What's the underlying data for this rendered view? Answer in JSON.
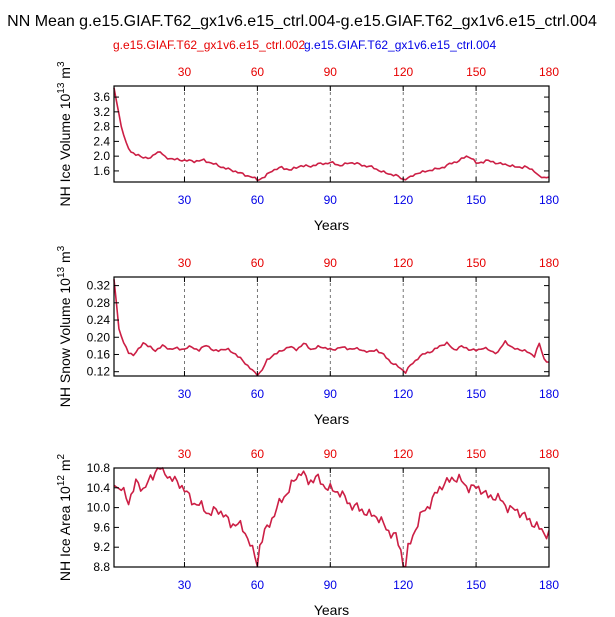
{
  "title": "NN Mean g.e15.GIAF.T62_gx1v6.e15_ctrl.004-g.e15.GIAF.T62_gx1v6.e15_ctrl.004",
  "legend": [
    {
      "label": "g.e15.GIAF.T62_gx1v6.e15_ctrl.002",
      "color": "#e60000"
    },
    {
      "label": "g.e15.GIAF.T62_gx1v6.e15_ctrl.004",
      "color": "#0000e6"
    }
  ],
  "colors": {
    "line": "#cc1f45",
    "top_ticks": "#e60000",
    "bottom_ticks": "#0000e6",
    "grid": "#555555"
  },
  "chart_data": [
    {
      "type": "line",
      "ylabel_main": "NH Ice Volume 10",
      "ylabel_exp": "13",
      "ylabel_unit": "m",
      "ylabel_unit_exp": "3",
      "xlabel": "Years",
      "xlim": [
        1,
        180
      ],
      "ylim": [
        1.3,
        3.9
      ],
      "xticks": [
        30,
        60,
        90,
        120,
        150,
        180
      ],
      "yticks": [
        "1.6",
        "2.0",
        "2.4",
        "2.8",
        "3.2",
        "3.6"
      ],
      "grid_x": [
        30,
        60,
        90,
        120,
        150
      ],
      "anchors": [
        [
          1,
          3.85
        ],
        [
          2,
          3.5
        ],
        [
          4,
          2.8
        ],
        [
          6,
          2.35
        ],
        [
          8,
          2.12
        ],
        [
          10,
          2.02
        ],
        [
          12,
          2.0
        ],
        [
          14,
          1.97
        ],
        [
          16,
          1.93
        ],
        [
          18,
          2.08
        ],
        [
          20,
          2.12
        ],
        [
          22,
          1.98
        ],
        [
          26,
          1.9
        ],
        [
          30,
          1.9
        ],
        [
          34,
          1.85
        ],
        [
          38,
          1.9
        ],
        [
          42,
          1.78
        ],
        [
          46,
          1.7
        ],
        [
          50,
          1.6
        ],
        [
          54,
          1.52
        ],
        [
          57,
          1.45
        ],
        [
          60,
          1.35
        ],
        [
          63,
          1.45
        ],
        [
          66,
          1.6
        ],
        [
          70,
          1.7
        ],
        [
          74,
          1.62
        ],
        [
          78,
          1.75
        ],
        [
          82,
          1.72
        ],
        [
          86,
          1.8
        ],
        [
          90,
          1.82
        ],
        [
          94,
          1.75
        ],
        [
          98,
          1.82
        ],
        [
          102,
          1.78
        ],
        [
          106,
          1.72
        ],
        [
          110,
          1.62
        ],
        [
          114,
          1.52
        ],
        [
          118,
          1.45
        ],
        [
          120,
          1.38
        ],
        [
          123,
          1.42
        ],
        [
          126,
          1.55
        ],
        [
          130,
          1.6
        ],
        [
          134,
          1.65
        ],
        [
          138,
          1.75
        ],
        [
          142,
          1.85
        ],
        [
          146,
          2.0
        ],
        [
          148,
          1.95
        ],
        [
          150,
          1.8
        ],
        [
          154,
          1.88
        ],
        [
          158,
          1.82
        ],
        [
          162,
          1.78
        ],
        [
          166,
          1.7
        ],
        [
          170,
          1.72
        ],
        [
          172,
          1.65
        ],
        [
          174,
          1.6
        ],
        [
          176,
          1.45
        ],
        [
          178,
          1.42
        ],
        [
          180,
          1.45
        ]
      ]
    },
    {
      "type": "line",
      "ylabel_main": "NH Snow Volume 10",
      "ylabel_exp": "13",
      "ylabel_unit": "m",
      "ylabel_unit_exp": "3",
      "xlabel": "Years",
      "xlim": [
        1,
        180
      ],
      "ylim": [
        0.11,
        0.34
      ],
      "xticks": [
        30,
        60,
        90,
        120,
        150,
        180
      ],
      "yticks": [
        "0.12",
        "0.16",
        "0.20",
        "0.24",
        "0.28",
        "0.32"
      ],
      "grid_x": [
        30,
        60,
        90,
        120,
        150
      ],
      "anchors": [
        [
          1,
          0.335
        ],
        [
          2,
          0.28
        ],
        [
          3,
          0.22
        ],
        [
          5,
          0.185
        ],
        [
          7,
          0.165
        ],
        [
          9,
          0.158
        ],
        [
          11,
          0.172
        ],
        [
          13,
          0.188
        ],
        [
          15,
          0.178
        ],
        [
          18,
          0.17
        ],
        [
          21,
          0.18
        ],
        [
          24,
          0.172
        ],
        [
          27,
          0.175
        ],
        [
          30,
          0.172
        ],
        [
          33,
          0.178
        ],
        [
          36,
          0.17
        ],
        [
          39,
          0.182
        ],
        [
          42,
          0.168
        ],
        [
          45,
          0.172
        ],
        [
          48,
          0.17
        ],
        [
          51,
          0.162
        ],
        [
          54,
          0.145
        ],
        [
          57,
          0.128
        ],
        [
          60,
          0.112
        ],
        [
          62,
          0.125
        ],
        [
          64,
          0.145
        ],
        [
          67,
          0.162
        ],
        [
          70,
          0.168
        ],
        [
          73,
          0.178
        ],
        [
          76,
          0.172
        ],
        [
          79,
          0.185
        ],
        [
          82,
          0.172
        ],
        [
          85,
          0.178
        ],
        [
          88,
          0.175
        ],
        [
          91,
          0.17
        ],
        [
          94,
          0.178
        ],
        [
          97,
          0.172
        ],
        [
          100,
          0.175
        ],
        [
          103,
          0.17
        ],
        [
          106,
          0.165
        ],
        [
          109,
          0.172
        ],
        [
          112,
          0.158
        ],
        [
          115,
          0.142
        ],
        [
          118,
          0.132
        ],
        [
          121,
          0.118
        ],
        [
          123,
          0.135
        ],
        [
          126,
          0.152
        ],
        [
          129,
          0.162
        ],
        [
          132,
          0.168
        ],
        [
          135,
          0.18
        ],
        [
          138,
          0.185
        ],
        [
          141,
          0.172
        ],
        [
          144,
          0.178
        ],
        [
          147,
          0.172
        ],
        [
          150,
          0.17
        ],
        [
          153,
          0.175
        ],
        [
          156,
          0.168
        ],
        [
          159,
          0.165
        ],
        [
          162,
          0.19
        ],
        [
          165,
          0.175
        ],
        [
          168,
          0.172
        ],
        [
          171,
          0.165
        ],
        [
          174,
          0.158
        ],
        [
          176,
          0.185
        ],
        [
          178,
          0.148
        ],
        [
          180,
          0.142
        ]
      ]
    },
    {
      "type": "line",
      "ylabel_main": "NH Ice Area 10",
      "ylabel_exp": "12",
      "ylabel_unit": "m",
      "ylabel_unit_exp": "2",
      "xlabel": "Years",
      "xlim": [
        1,
        180
      ],
      "ylim": [
        8.8,
        10.8
      ],
      "xticks": [
        30,
        60,
        90,
        120,
        150,
        180
      ],
      "yticks": [
        "8.8",
        "9.2",
        "9.6",
        "10.0",
        "10.4",
        "10.8"
      ],
      "grid_x": [
        30,
        60,
        90,
        120,
        150
      ],
      "anchors": [
        [
          1,
          10.45
        ],
        [
          4,
          10.35
        ],
        [
          7,
          10.15
        ],
        [
          10,
          10.5
        ],
        [
          13,
          10.35
        ],
        [
          16,
          10.6
        ],
        [
          19,
          10.8
        ],
        [
          22,
          10.7
        ],
        [
          25,
          10.6
        ],
        [
          28,
          10.45
        ],
        [
          31,
          10.3
        ],
        [
          34,
          10.1
        ],
        [
          37,
          10.0
        ],
        [
          40,
          9.9
        ],
        [
          43,
          9.95
        ],
        [
          46,
          9.85
        ],
        [
          49,
          9.7
        ],
        [
          52,
          9.65
        ],
        [
          55,
          9.5
        ],
        [
          57,
          9.3
        ],
        [
          59,
          9.0
        ],
        [
          60,
          8.8
        ],
        [
          61,
          9.2
        ],
        [
          63,
          9.5
        ],
        [
          66,
          9.8
        ],
        [
          69,
          10.05
        ],
        [
          72,
          10.3
        ],
        [
          75,
          10.55
        ],
        [
          78,
          10.7
        ],
        [
          81,
          10.55
        ],
        [
          84,
          10.6
        ],
        [
          87,
          10.45
        ],
        [
          90,
          10.4
        ],
        [
          93,
          10.3
        ],
        [
          96,
          10.2
        ],
        [
          99,
          10.05
        ],
        [
          102,
          9.95
        ],
        [
          105,
          9.9
        ],
        [
          108,
          9.85
        ],
        [
          111,
          9.7
        ],
        [
          114,
          9.55
        ],
        [
          117,
          9.4
        ],
        [
          119,
          9.1
        ],
        [
          120,
          8.8
        ],
        [
          121,
          8.8
        ],
        [
          122,
          9.2
        ],
        [
          125,
          9.55
        ],
        [
          128,
          9.9
        ],
        [
          131,
          10.1
        ],
        [
          134,
          10.3
        ],
        [
          137,
          10.5
        ],
        [
          140,
          10.6
        ],
        [
          143,
          10.55
        ],
        [
          146,
          10.45
        ],
        [
          149,
          10.4
        ],
        [
          152,
          10.35
        ],
        [
          155,
          10.25
        ],
        [
          158,
          10.2
        ],
        [
          161,
          10.1
        ],
        [
          164,
          10.0
        ],
        [
          167,
          9.9
        ],
        [
          170,
          9.85
        ],
        [
          173,
          9.7
        ],
        [
          176,
          9.55
        ],
        [
          178,
          9.5
        ],
        [
          180,
          9.5
        ]
      ]
    }
  ]
}
